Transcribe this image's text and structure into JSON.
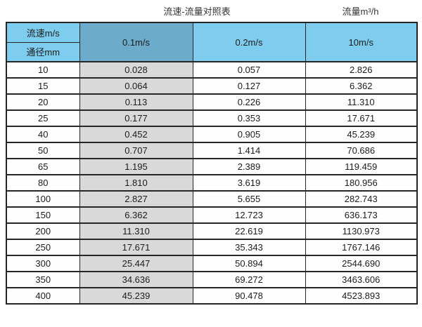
{
  "caption": {
    "title": "流速-流量对照表",
    "unit": "流量m³/h"
  },
  "table": {
    "corner_top": "流速m/s",
    "corner_bottom": "通径mm",
    "velocity_headers": [
      "0.1m/s",
      "0.2m/s",
      "10m/s"
    ],
    "rows": [
      {
        "dn": "10",
        "v1": "0.028",
        "v2": "0.057",
        "v3": "2.826"
      },
      {
        "dn": "15",
        "v1": "0.064",
        "v2": "0.127",
        "v3": "6.362"
      },
      {
        "dn": "20",
        "v1": "0.113",
        "v2": "0.226",
        "v3": "11.310"
      },
      {
        "dn": "25",
        "v1": "0.177",
        "v2": "0.353",
        "v3": "17.671"
      },
      {
        "dn": "40",
        "v1": "0.452",
        "v2": "0.905",
        "v3": "45.239"
      },
      {
        "dn": "50",
        "v1": "0.707",
        "v2": "1.414",
        "v3": "70.686"
      },
      {
        "dn": "65",
        "v1": "1.195",
        "v2": "2.389",
        "v3": "119.459"
      },
      {
        "dn": "80",
        "v1": "1.810",
        "v2": "3.619",
        "v3": "180.956"
      },
      {
        "dn": "100",
        "v1": "2.827",
        "v2": "5.655",
        "v3": "282.743"
      },
      {
        "dn": "150",
        "v1": "6.362",
        "v2": "12.723",
        "v3": "636.173"
      },
      {
        "dn": "200",
        "v1": "11.310",
        "v2": "22.619",
        "v3": "1130.973"
      },
      {
        "dn": "250",
        "v1": "17.671",
        "v2": "35.343",
        "v3": "1767.146"
      },
      {
        "dn": "300",
        "v1": "25.447",
        "v2": "50.894",
        "v3": "2544.690"
      },
      {
        "dn": "350",
        "v1": "34.636",
        "v2": "69.272",
        "v3": "3463.606"
      },
      {
        "dn": "400",
        "v1": "45.239",
        "v2": "90.478",
        "v3": "4523.893"
      }
    ]
  },
  "colors": {
    "header_blue": "#7fcdee",
    "header_steel_blue": "#6cacca",
    "highlight_column_grey": "#d9d9d9",
    "border": "#262626",
    "text": "#1c1c1c"
  },
  "chart_data": {
    "type": "table",
    "title": "流速-流量对照表",
    "right_label": "流量m³/h",
    "columns": [
      "通径mm",
      "0.1m/s",
      "0.2m/s",
      "10m/s"
    ],
    "rows": [
      [
        10,
        0.028,
        0.057,
        2.826
      ],
      [
        15,
        0.064,
        0.127,
        6.362
      ],
      [
        20,
        0.113,
        0.226,
        11.31
      ],
      [
        25,
        0.177,
        0.353,
        17.671
      ],
      [
        40,
        0.452,
        0.905,
        45.239
      ],
      [
        50,
        0.707,
        1.414,
        70.686
      ],
      [
        65,
        1.195,
        2.389,
        119.459
      ],
      [
        80,
        1.81,
        3.619,
        180.956
      ],
      [
        100,
        2.827,
        5.655,
        282.743
      ],
      [
        150,
        6.362,
        12.723,
        636.173
      ],
      [
        200,
        11.31,
        22.619,
        1130.973
      ],
      [
        250,
        17.671,
        35.343,
        1767.146
      ],
      [
        300,
        25.447,
        50.894,
        2544.69
      ],
      [
        350,
        34.636,
        69.272,
        3463.606
      ],
      [
        400,
        45.239,
        90.478,
        4523.893
      ]
    ],
    "notes": "Flow velocity vs flow rate lookup table; flow rate unit m3/h; 0.1m/s column highlighted"
  }
}
